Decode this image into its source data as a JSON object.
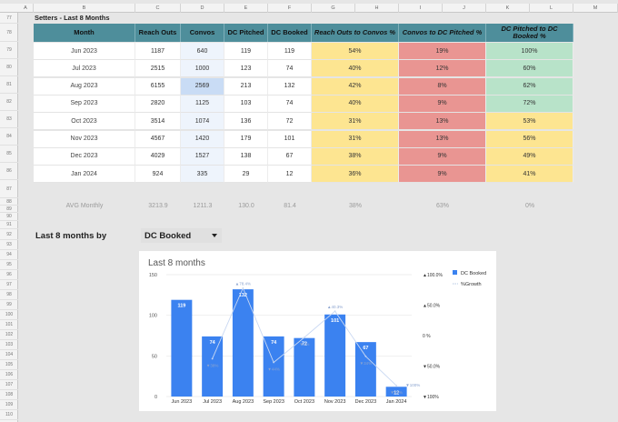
{
  "columns": [
    "A",
    "B",
    "C",
    "D",
    "E",
    "F",
    "G",
    "H",
    "I",
    "J",
    "K",
    "L",
    "M"
  ],
  "rows": [
    "77",
    "78",
    "79",
    "80",
    "81",
    "82",
    "83",
    "84",
    "85",
    "86",
    "87",
    "88",
    "89",
    "90",
    "91",
    "92",
    "93",
    "94",
    "95",
    "96",
    "97",
    "98",
    "99",
    "100",
    "101",
    "102",
    "103",
    "104",
    "105",
    "106",
    "107",
    "108",
    "109",
    "110"
  ],
  "sheet_title": "Setters - Last 8 Months",
  "headers": {
    "month": "Month",
    "reach": "Reach Outs",
    "convos": "Convos",
    "dc_pitched": "DC Pitched",
    "dc_booked": "DC Booked",
    "r2c": "Reach Outs to Convos %",
    "c2p": "Convos to DC Pitched %",
    "p2b": "DC Pitched to DC Booked %"
  },
  "table": [
    {
      "month": "Jun  2023",
      "reach": "1187",
      "convos": "640",
      "pitched": "119",
      "booked": "119",
      "r2c": "54%",
      "c2p": "19%",
      "p2b": "100%"
    },
    {
      "month": "Jul  2023",
      "reach": "2515",
      "convos": "1000",
      "pitched": "123",
      "booked": "74",
      "r2c": "40%",
      "c2p": "12%",
      "p2b": "60%"
    },
    {
      "month": "Aug  2023",
      "reach": "6155",
      "convos": "2569",
      "pitched": "213",
      "booked": "132",
      "r2c": "42%",
      "c2p": "8%",
      "p2b": "62%"
    },
    {
      "month": "Sep  2023",
      "reach": "2820",
      "convos": "1125",
      "pitched": "103",
      "booked": "74",
      "r2c": "40%",
      "c2p": "9%",
      "p2b": "72%"
    },
    {
      "month": "Oct  2023",
      "reach": "3514",
      "convos": "1074",
      "pitched": "136",
      "booked": "72",
      "r2c": "31%",
      "c2p": "13%",
      "p2b": "53%"
    },
    {
      "month": "Nov  2023",
      "reach": "4567",
      "convos": "1420",
      "pitched": "179",
      "booked": "101",
      "r2c": "31%",
      "c2p": "13%",
      "p2b": "56%"
    },
    {
      "month": "Dec  2023",
      "reach": "4029",
      "convos": "1527",
      "pitched": "138",
      "booked": "67",
      "r2c": "38%",
      "c2p": "9%",
      "p2b": "49%"
    },
    {
      "month": "Jan  2024",
      "reach": "924",
      "convos": "335",
      "pitched": "29",
      "booked": "12",
      "r2c": "36%",
      "c2p": "9%",
      "p2b": "41%"
    }
  ],
  "avg": {
    "label": "AVG Monthly",
    "reach": "3213.9",
    "convos": "1211.3",
    "pitched": "130.0",
    "booked": "81.4",
    "r2c": "38%",
    "c2p": "63%",
    "p2b": "0%"
  },
  "selector": {
    "label": "Last 8 months by",
    "value": "DC Booked"
  },
  "chart_data": {
    "type": "bar",
    "title": "Last 8 months",
    "categories": [
      "Jun  2023",
      "Jul  2023",
      "Aug  2023",
      "Sep  2023",
      "Oct  2023",
      "Nov  2023",
      "Dec  2023",
      "Jan  2024"
    ],
    "series": [
      {
        "name": "DC Booked",
        "values": [
          119,
          74,
          132,
          74,
          72,
          101,
          67,
          12
        ],
        "color": "#3b82f0"
      },
      {
        "name": "%Growth",
        "type": "line",
        "values": [
          null,
          -38,
          78,
          -44,
          -3,
          40,
          -34,
          -82
        ],
        "labels": [
          "",
          "▼38%",
          "▲78.4%",
          "▼44%",
          "▼3%",
          "▲40.3%",
          "▼34%",
          "▼82%"
        ],
        "color": "#c9d8f2"
      }
    ],
    "y_left": {
      "min": 0,
      "max": 150,
      "ticks": [
        "0",
        "50",
        "100",
        "150"
      ]
    },
    "y_right": {
      "min": -100,
      "max": 100,
      "ticks": [
        "▲100.0%",
        "▲50.0%",
        "0 %",
        "▼50.0%",
        "▼100%"
      ]
    },
    "extra_label": "▼100%",
    "legend_position": "right",
    "legend": [
      "DC Booked",
      "%Growth"
    ]
  }
}
